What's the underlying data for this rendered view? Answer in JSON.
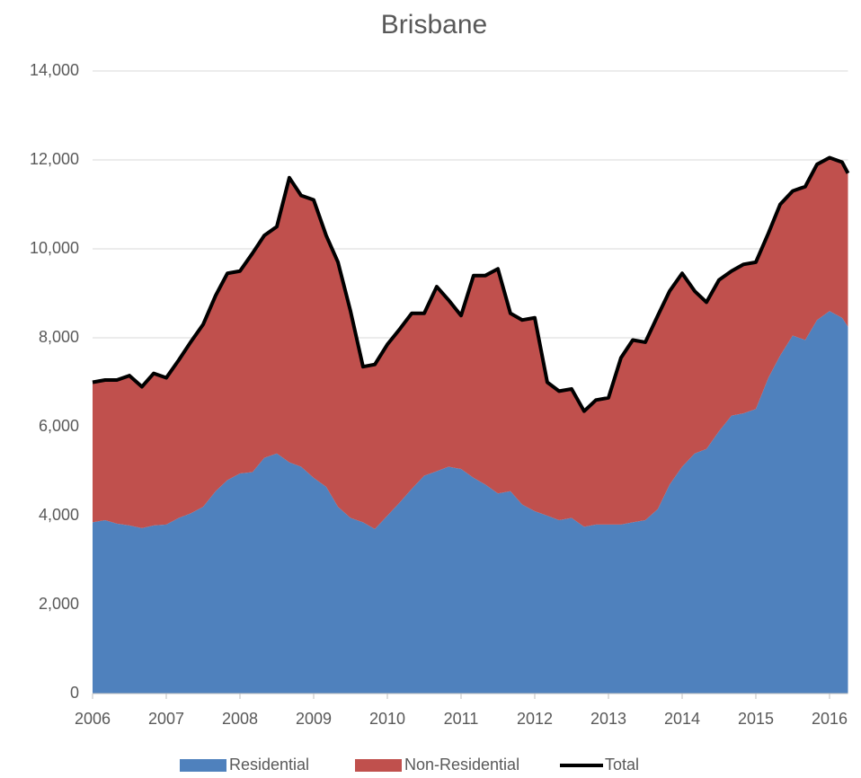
{
  "chart_data": {
    "type": "area",
    "stacked": true,
    "title": "Brisbane",
    "x": [
      2006,
      2006.17,
      2006.33,
      2006.5,
      2006.67,
      2006.83,
      2007,
      2007.17,
      2007.33,
      2007.5,
      2007.67,
      2007.83,
      2008,
      2008.17,
      2008.33,
      2008.5,
      2008.67,
      2008.83,
      2009,
      2009.17,
      2009.33,
      2009.5,
      2009.67,
      2009.83,
      2010,
      2010.17,
      2010.33,
      2010.5,
      2010.67,
      2010.83,
      2011,
      2011.17,
      2011.33,
      2011.5,
      2011.67,
      2011.83,
      2012,
      2012.17,
      2012.33,
      2012.5,
      2012.67,
      2012.83,
      2013,
      2013.17,
      2013.33,
      2013.5,
      2013.67,
      2013.83,
      2014,
      2014.17,
      2014.33,
      2014.5,
      2014.67,
      2014.83,
      2015,
      2015.17,
      2015.33,
      2015.5,
      2015.67,
      2015.83,
      2016,
      2016.17,
      2016.25
    ],
    "series": [
      {
        "name": "Residential",
        "color": "#4f81bd",
        "values": [
          3850,
          3900,
          3820,
          3780,
          3720,
          3780,
          3800,
          3950,
          4050,
          4200,
          4550,
          4800,
          4950,
          4980,
          5300,
          5400,
          5200,
          5100,
          4850,
          4650,
          4200,
          3950,
          3850,
          3700,
          4000,
          4300,
          4600,
          4900,
          5000,
          5100,
          5050,
          4850,
          4700,
          4500,
          4550,
          4250,
          4100,
          4000,
          3900,
          3950,
          3750,
          3800,
          3800,
          3800,
          3850,
          3900,
          4150,
          4700,
          5100,
          5400,
          5500,
          5900,
          6250,
          6300,
          6400,
          7100,
          7600,
          8050,
          7950,
          8400,
          8600,
          8450,
          8250
        ]
      },
      {
        "name": "Non-Residential",
        "color": "#c0504d",
        "values": [
          3150,
          3150,
          3230,
          3370,
          3180,
          3420,
          3300,
          3550,
          3850,
          4100,
          4400,
          4650,
          4550,
          4920,
          5000,
          5100,
          6400,
          6100,
          6250,
          5650,
          5500,
          4650,
          3500,
          3700,
          3850,
          3900,
          3950,
          3650,
          4150,
          3750,
          3450,
          4550,
          4700,
          5050,
          4000,
          4150,
          4350,
          3000,
          2900,
          2900,
          2600,
          2800,
          2850,
          3750,
          4100,
          4000,
          4350,
          4350,
          4350,
          3650,
          3300,
          3400,
          3250,
          3350,
          3300,
          3250,
          3400,
          3250,
          3450,
          3500,
          3450,
          3500,
          3450
        ]
      },
      {
        "name": "Total",
        "type": "line",
        "color": "#000000",
        "values": [
          7000,
          7050,
          7050,
          7150,
          6900,
          7200,
          7100,
          7500,
          7900,
          8300,
          8950,
          9450,
          9500,
          9900,
          10300,
          10500,
          11600,
          11200,
          11100,
          10300,
          9700,
          8600,
          7350,
          7400,
          7850,
          8200,
          8550,
          8550,
          9150,
          8850,
          8500,
          9400,
          9400,
          9550,
          8550,
          8400,
          8450,
          7000,
          6800,
          6850,
          6350,
          6600,
          6650,
          7550,
          7950,
          7900,
          8500,
          9050,
          9450,
          9050,
          8800,
          9300,
          9500,
          9650,
          9700,
          10350,
          11000,
          11300,
          11400,
          11900,
          12050,
          11950,
          11700
        ]
      }
    ],
    "xlim": [
      2006,
      2016.25
    ],
    "xticks": [
      2006,
      2007,
      2008,
      2009,
      2010,
      2011,
      2012,
      2013,
      2014,
      2015,
      2016
    ],
    "ylim": [
      0,
      14000
    ],
    "yticks": [
      0,
      {
        "value": 2000,
        "label": "2,000"
      },
      {
        "value": 4000,
        "label": "4,000"
      },
      {
        "value": 6000,
        "label": "6,000"
      },
      {
        "value": 8000,
        "label": "8,000"
      },
      {
        "value": 10000,
        "label": "10,000"
      },
      {
        "value": 12000,
        "label": "12,000"
      },
      {
        "value": 14000,
        "label": "14,000"
      }
    ],
    "grid": true,
    "legend": "bottom"
  }
}
